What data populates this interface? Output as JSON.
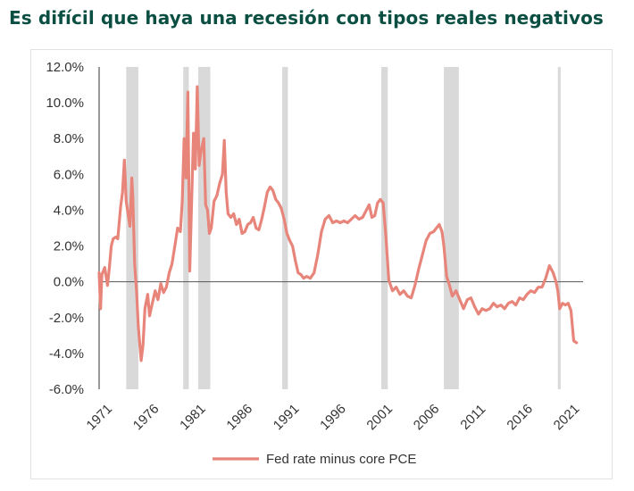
{
  "title": "Es difícil que haya una recesión con tipos reales negativos",
  "chart_data": {
    "type": "line",
    "title": "Es difícil que haya una recesión con tipos reales negativos",
    "xlim": [
      1971,
      2022.8
    ],
    "ylim": [
      -6,
      12
    ],
    "y_ticks": [
      "12.0%",
      "10.0%",
      "8.0%",
      "6.0%",
      "4.0%",
      "2.0%",
      "0.0%",
      "-2.0%",
      "-4.0%",
      "-6.0%"
    ],
    "y_tick_values": [
      12,
      10,
      8,
      6,
      4,
      2,
      0,
      -2,
      -4,
      -6
    ],
    "x_ticks": [
      "1971",
      "1976",
      "1981",
      "1986",
      "1991",
      "1996",
      "2001",
      "2006",
      "2011",
      "2016",
      "2021"
    ],
    "x_tick_values": [
      1971,
      1976,
      1981,
      1986,
      1991,
      1996,
      2001,
      2006,
      2011,
      2016,
      2021
    ],
    "legend": "bottom",
    "grid": false,
    "series_color": "#e8857a",
    "recession_color": "#d9d9d9",
    "recessions": [
      [
        1973.9,
        1975.2
      ],
      [
        1980.0,
        1980.6
      ],
      [
        1981.6,
        1982.9
      ],
      [
        1990.6,
        1991.2
      ],
      [
        2001.2,
        2001.9
      ],
      [
        2007.9,
        2009.5
      ],
      [
        2020.1,
        2020.4
      ]
    ],
    "series": [
      {
        "name": "Fed rate minus core PCE",
        "points": [
          [
            1971.0,
            0.5
          ],
          [
            1971.15,
            -1.5
          ],
          [
            1971.3,
            0.4
          ],
          [
            1971.6,
            0.8
          ],
          [
            1971.9,
            -0.2
          ],
          [
            1972.1,
            0.8
          ],
          [
            1972.3,
            2.0
          ],
          [
            1972.5,
            2.4
          ],
          [
            1972.8,
            2.5
          ],
          [
            1973.0,
            2.4
          ],
          [
            1973.3,
            4.2
          ],
          [
            1973.5,
            5.0
          ],
          [
            1973.7,
            6.8
          ],
          [
            1973.9,
            4.5
          ],
          [
            1974.1,
            3.8
          ],
          [
            1974.3,
            3.1
          ],
          [
            1974.5,
            5.8
          ],
          [
            1974.6,
            4.8
          ],
          [
            1974.8,
            1.0
          ],
          [
            1975.0,
            -0.5
          ],
          [
            1975.2,
            -2.5
          ],
          [
            1975.5,
            -4.4
          ],
          [
            1975.7,
            -3.5
          ],
          [
            1975.9,
            -1.5
          ],
          [
            1976.2,
            -0.7
          ],
          [
            1976.4,
            -1.9
          ],
          [
            1976.7,
            -1.2
          ],
          [
            1977.0,
            -0.5
          ],
          [
            1977.3,
            -1.0
          ],
          [
            1977.6,
            -0.1
          ],
          [
            1977.9,
            -0.6
          ],
          [
            1978.2,
            -0.3
          ],
          [
            1978.5,
            0.5
          ],
          [
            1978.8,
            1.0
          ],
          [
            1979.1,
            2.0
          ],
          [
            1979.4,
            3.0
          ],
          [
            1979.7,
            2.8
          ],
          [
            1979.9,
            4.5
          ],
          [
            1980.1,
            8.0
          ],
          [
            1980.3,
            5.8
          ],
          [
            1980.5,
            10.6
          ],
          [
            1980.7,
            0.6
          ],
          [
            1980.9,
            4.5
          ],
          [
            1981.1,
            8.3
          ],
          [
            1981.3,
            6.3
          ],
          [
            1981.5,
            10.9
          ],
          [
            1981.7,
            6.5
          ],
          [
            1981.9,
            7.3
          ],
          [
            1982.2,
            8.0
          ],
          [
            1982.4,
            4.3
          ],
          [
            1982.6,
            4.0
          ],
          [
            1982.8,
            2.7
          ],
          [
            1983.0,
            3.0
          ],
          [
            1983.3,
            4.5
          ],
          [
            1983.6,
            4.8
          ],
          [
            1983.9,
            5.5
          ],
          [
            1984.2,
            6.0
          ],
          [
            1984.4,
            7.9
          ],
          [
            1984.6,
            5.0
          ],
          [
            1984.8,
            3.8
          ],
          [
            1985.1,
            3.6
          ],
          [
            1985.4,
            3.8
          ],
          [
            1985.7,
            3.2
          ],
          [
            1986.0,
            3.5
          ],
          [
            1986.3,
            2.7
          ],
          [
            1986.6,
            2.8
          ],
          [
            1986.9,
            3.2
          ],
          [
            1987.2,
            3.3
          ],
          [
            1987.5,
            3.6
          ],
          [
            1987.8,
            3.0
          ],
          [
            1988.1,
            2.9
          ],
          [
            1988.4,
            3.5
          ],
          [
            1988.7,
            4.2
          ],
          [
            1989.0,
            5.0
          ],
          [
            1989.3,
            5.3
          ],
          [
            1989.6,
            5.1
          ],
          [
            1989.9,
            4.6
          ],
          [
            1990.2,
            4.4
          ],
          [
            1990.5,
            4.1
          ],
          [
            1990.8,
            3.5
          ],
          [
            1991.1,
            2.7
          ],
          [
            1991.4,
            2.3
          ],
          [
            1991.7,
            2.0
          ],
          [
            1992.0,
            1.2
          ],
          [
            1992.3,
            0.5
          ],
          [
            1992.6,
            0.4
          ],
          [
            1992.9,
            0.2
          ],
          [
            1993.2,
            0.3
          ],
          [
            1993.6,
            0.2
          ],
          [
            1994.0,
            0.5
          ],
          [
            1994.4,
            1.5
          ],
          [
            1994.8,
            2.8
          ],
          [
            1995.2,
            3.5
          ],
          [
            1995.6,
            3.7
          ],
          [
            1996.0,
            3.3
          ],
          [
            1996.4,
            3.4
          ],
          [
            1996.8,
            3.3
          ],
          [
            1997.2,
            3.4
          ],
          [
            1997.6,
            3.3
          ],
          [
            1998.0,
            3.5
          ],
          [
            1998.4,
            3.7
          ],
          [
            1998.8,
            3.5
          ],
          [
            1999.2,
            3.6
          ],
          [
            1999.6,
            4.0
          ],
          [
            1999.9,
            4.3
          ],
          [
            2000.2,
            3.6
          ],
          [
            2000.5,
            3.7
          ],
          [
            2000.8,
            4.4
          ],
          [
            2001.1,
            4.6
          ],
          [
            2001.4,
            4.4
          ],
          [
            2001.7,
            2.5
          ],
          [
            2002.0,
            0.1
          ],
          [
            2002.4,
            -0.5
          ],
          [
            2002.8,
            -0.3
          ],
          [
            2003.2,
            -0.7
          ],
          [
            2003.6,
            -0.5
          ],
          [
            2004.0,
            -0.8
          ],
          [
            2004.4,
            -0.9
          ],
          [
            2004.8,
            -0.2
          ],
          [
            2005.2,
            0.7
          ],
          [
            2005.6,
            1.5
          ],
          [
            2006.0,
            2.3
          ],
          [
            2006.4,
            2.7
          ],
          [
            2006.8,
            2.8
          ],
          [
            2007.1,
            3.0
          ],
          [
            2007.4,
            3.2
          ],
          [
            2007.7,
            2.8
          ],
          [
            2007.9,
            2.0
          ],
          [
            2008.2,
            0.3
          ],
          [
            2008.5,
            -0.2
          ],
          [
            2008.8,
            -0.8
          ],
          [
            2009.2,
            -0.5
          ],
          [
            2009.6,
            -1.0
          ],
          [
            2010.0,
            -1.5
          ],
          [
            2010.4,
            -1.0
          ],
          [
            2010.8,
            -0.9
          ],
          [
            2011.2,
            -1.4
          ],
          [
            2011.6,
            -1.8
          ],
          [
            2012.0,
            -1.5
          ],
          [
            2012.4,
            -1.6
          ],
          [
            2012.8,
            -1.5
          ],
          [
            2013.2,
            -1.2
          ],
          [
            2013.6,
            -1.4
          ],
          [
            2014.0,
            -1.3
          ],
          [
            2014.4,
            -1.5
          ],
          [
            2014.8,
            -1.2
          ],
          [
            2015.2,
            -1.1
          ],
          [
            2015.6,
            -1.3
          ],
          [
            2016.0,
            -0.9
          ],
          [
            2016.4,
            -1.0
          ],
          [
            2016.8,
            -0.7
          ],
          [
            2017.2,
            -0.5
          ],
          [
            2017.6,
            -0.6
          ],
          [
            2018.0,
            -0.3
          ],
          [
            2018.4,
            -0.3
          ],
          [
            2018.8,
            0.2
          ],
          [
            2019.2,
            0.9
          ],
          [
            2019.6,
            0.5
          ],
          [
            2019.9,
            0.0
          ],
          [
            2020.1,
            -0.5
          ],
          [
            2020.3,
            -1.5
          ],
          [
            2020.6,
            -1.2
          ],
          [
            2020.9,
            -1.3
          ],
          [
            2021.2,
            -1.2
          ],
          [
            2021.5,
            -1.6
          ],
          [
            2021.8,
            -3.3
          ],
          [
            2022.1,
            -3.4
          ]
        ]
      }
    ]
  },
  "legend": {
    "label": "Fed rate minus core PCE"
  }
}
